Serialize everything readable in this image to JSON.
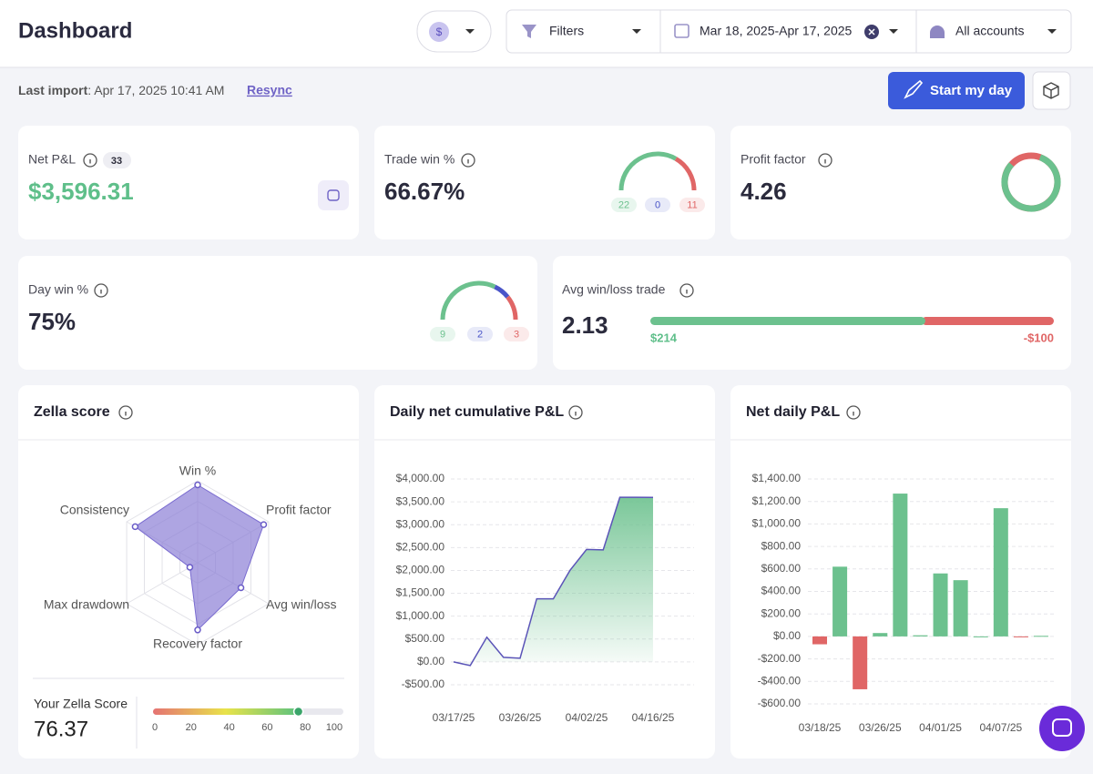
{
  "header": {
    "title": "Dashboard",
    "currency": "$",
    "filters": "Filters",
    "date_range": "Mar 18, 2025-Apr 17, 2025",
    "accounts": "All accounts"
  },
  "toolbar": {
    "last_import_label": "Last import",
    "last_import_value": ": Apr 17, 2025 10:41 AM",
    "resync": "Resync",
    "start_button": "Start my day"
  },
  "kpis": {
    "net_pnl": {
      "label": "Net P&L",
      "badge": 33,
      "value": "$3,596.31"
    },
    "trade_win": {
      "label": "Trade win %",
      "value": "66.67%",
      "wins": 22,
      "breakeven": 0,
      "losses": 11
    },
    "profit_factor": {
      "label": "Profit factor",
      "value": 4.26
    },
    "day_win": {
      "label": "Day win %",
      "value": "75%",
      "wins": 9,
      "breakeven": 2,
      "losses": 3
    },
    "avg_win_loss": {
      "label": "Avg win/loss trade",
      "value": 2.13,
      "avg_win": {
        "value": 214,
        "label": "$214"
      },
      "avg_loss": {
        "value": -100,
        "label": "-$100"
      }
    }
  },
  "zella_score": {
    "label": "Your Zella Score",
    "value": 76.37,
    "ticks": [
      0,
      20,
      40,
      60,
      80,
      100
    ]
  },
  "chart_data": [
    {
      "type": "radar",
      "title": "Zella score",
      "categories": [
        "Win %",
        "Profit factor",
        "Avg win/loss",
        "Recovery factor",
        "Max drawdown",
        "Consistency"
      ],
      "values": [
        95,
        93,
        61,
        82,
        11,
        88
      ],
      "ylim": [
        0,
        100
      ],
      "color": "#8b7fd6"
    },
    {
      "type": "area",
      "title": "Daily net cumulative P&L",
      "categories": [
        "03/17/25",
        null,
        null,
        null,
        "03/26/25",
        null,
        null,
        null,
        "04/02/25",
        null,
        null,
        null,
        "04/16/25"
      ],
      "values": [
        0,
        -80,
        540,
        100,
        80,
        1380,
        1380,
        2000,
        2460,
        2450,
        3600,
        3600,
        3596.31
      ],
      "color": "#5b54b8",
      "fill": "#6cc18e",
      "ylim": [
        -500,
        4000
      ],
      "yticks": [
        {
          "value": -500,
          "label": "-$500.00"
        },
        {
          "value": 0,
          "label": "$0.00"
        },
        {
          "value": 500,
          "label": "$500.00"
        },
        {
          "value": 1000,
          "label": "$1,000.00"
        },
        {
          "value": 1500,
          "label": "$1,500.00"
        },
        {
          "value": 2000,
          "label": "$2,000.00"
        },
        {
          "value": 2500,
          "label": "$2,500.00"
        },
        {
          "value": 3000,
          "label": "$3,000.00"
        },
        {
          "value": 3500,
          "label": "$3,500.00"
        },
        {
          "value": 4000,
          "label": "$4,000.00"
        }
      ],
      "grid": true
    },
    {
      "type": "bar",
      "title": "Net daily P&L",
      "categories": [
        "03/18/25",
        null,
        null,
        "03/26/25",
        null,
        null,
        "04/01/25",
        null,
        null,
        "04/07/25",
        null,
        null
      ],
      "values": [
        -70,
        620,
        -470,
        30,
        1270,
        10,
        560,
        500,
        0,
        1140,
        -5,
        5
      ],
      "color": "#6cc18e",
      "negative_color": "#e06666",
      "ylim": [
        -600,
        1400
      ],
      "yticks": [
        {
          "value": -600,
          "label": "-$600.00"
        },
        {
          "value": -400,
          "label": "-$400.00"
        },
        {
          "value": -200,
          "label": "-$200.00"
        },
        {
          "value": 0,
          "label": "$0.00"
        },
        {
          "value": 200,
          "label": "$200.00"
        },
        {
          "value": 400,
          "label": "$400.00"
        },
        {
          "value": 600,
          "label": "$600.00"
        },
        {
          "value": 800,
          "label": "$800.00"
        },
        {
          "value": 1000,
          "label": "$1,000.00"
        },
        {
          "value": 1200,
          "label": "$1,200.00"
        },
        {
          "value": 1400,
          "label": "$1,400.00"
        }
      ],
      "grid": true
    }
  ]
}
